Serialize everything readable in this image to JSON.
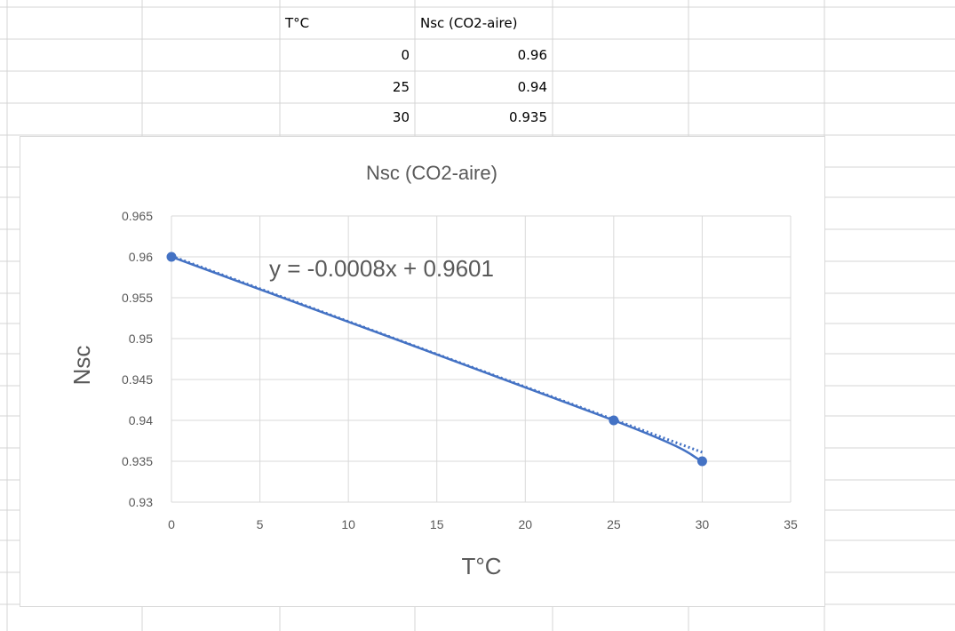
{
  "sheet": {
    "headers": [
      "T°C",
      "Nsc (CO2-aire)"
    ],
    "rows": [
      [
        "0",
        "0.96"
      ],
      [
        "25",
        "0.94"
      ],
      [
        "30",
        "0.935"
      ]
    ]
  },
  "colors": {
    "series": "#4472c4",
    "gridline": "#d9d9d9",
    "cell_border": "#d4d4d4",
    "text": "#595959"
  },
  "chart_data": {
    "type": "scatter",
    "title": "Nsc (CO2-aire)",
    "xlabel": "T°C",
    "ylabel": "Nsc",
    "xlim": [
      0,
      35
    ],
    "ylim": [
      0.93,
      0.965
    ],
    "x_ticks": [
      "0",
      "5",
      "10",
      "15",
      "20",
      "25",
      "30",
      "35"
    ],
    "y_ticks": [
      "0.93",
      "0.935",
      "0.94",
      "0.945",
      "0.95",
      "0.955",
      "0.96",
      "0.965"
    ],
    "grid": true,
    "series": [
      {
        "x": [
          0,
          25,
          30
        ],
        "y": [
          0.96,
          0.94,
          0.935
        ],
        "style": "smooth-line-with-markers"
      }
    ],
    "trendline": {
      "type": "linear",
      "slope": -0.0008,
      "intercept": 0.9601,
      "style": "dotted",
      "equation": "y = -0.0008x + 0.9601"
    }
  }
}
